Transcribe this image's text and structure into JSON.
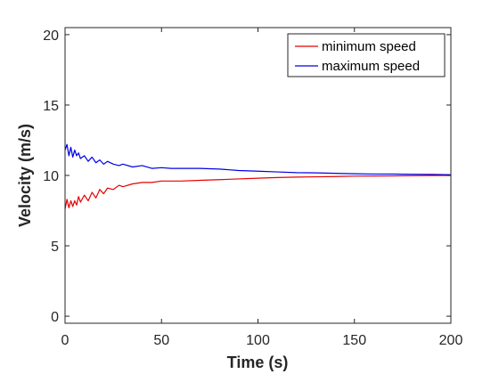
{
  "chart_data": {
    "type": "line",
    "xlabel": "Time (s)",
    "ylabel": "Velocity (m/s)",
    "xlim": [
      0,
      200
    ],
    "ylim": [
      -0.5,
      20.5
    ],
    "xticks": [
      0,
      50,
      100,
      150,
      200
    ],
    "yticks": [
      0,
      5,
      10,
      15,
      20
    ],
    "grid": false,
    "legend_position": "top-right",
    "series": [
      {
        "name": "minimum speed",
        "color": "#e60000",
        "x": [
          0,
          1,
          2,
          3,
          4,
          5,
          6,
          7,
          8,
          10,
          12,
          14,
          16,
          18,
          20,
          22,
          25,
          28,
          30,
          35,
          40,
          45,
          50,
          55,
          60,
          70,
          80,
          90,
          100,
          110,
          120,
          130,
          140,
          150,
          160,
          170,
          180,
          190,
          200
        ],
        "values": [
          7.6,
          8.3,
          7.7,
          8.2,
          7.8,
          8.2,
          7.9,
          8.5,
          8.1,
          8.6,
          8.2,
          8.8,
          8.4,
          9.0,
          8.7,
          9.1,
          9.0,
          9.3,
          9.2,
          9.4,
          9.5,
          9.5,
          9.6,
          9.6,
          9.6,
          9.65,
          9.7,
          9.75,
          9.8,
          9.85,
          9.88,
          9.9,
          9.92,
          9.95,
          9.96,
          9.97,
          9.98,
          9.99,
          10.0
        ]
      },
      {
        "name": "maximum speed",
        "color": "#0000e6",
        "x": [
          0,
          1,
          2,
          3,
          4,
          5,
          6,
          7,
          8,
          10,
          12,
          14,
          16,
          18,
          20,
          22,
          25,
          28,
          30,
          35,
          40,
          45,
          50,
          55,
          60,
          70,
          80,
          90,
          100,
          110,
          120,
          130,
          140,
          150,
          160,
          170,
          180,
          190,
          200
        ],
        "values": [
          11.8,
          12.2,
          11.4,
          12.0,
          11.3,
          11.8,
          11.4,
          11.6,
          11.2,
          11.4,
          11.0,
          11.3,
          10.9,
          11.1,
          10.8,
          11.0,
          10.8,
          10.7,
          10.8,
          10.6,
          10.7,
          10.5,
          10.55,
          10.5,
          10.5,
          10.5,
          10.45,
          10.35,
          10.3,
          10.25,
          10.2,
          10.18,
          10.15,
          10.12,
          10.1,
          10.1,
          10.08,
          10.07,
          10.05
        ]
      }
    ]
  }
}
